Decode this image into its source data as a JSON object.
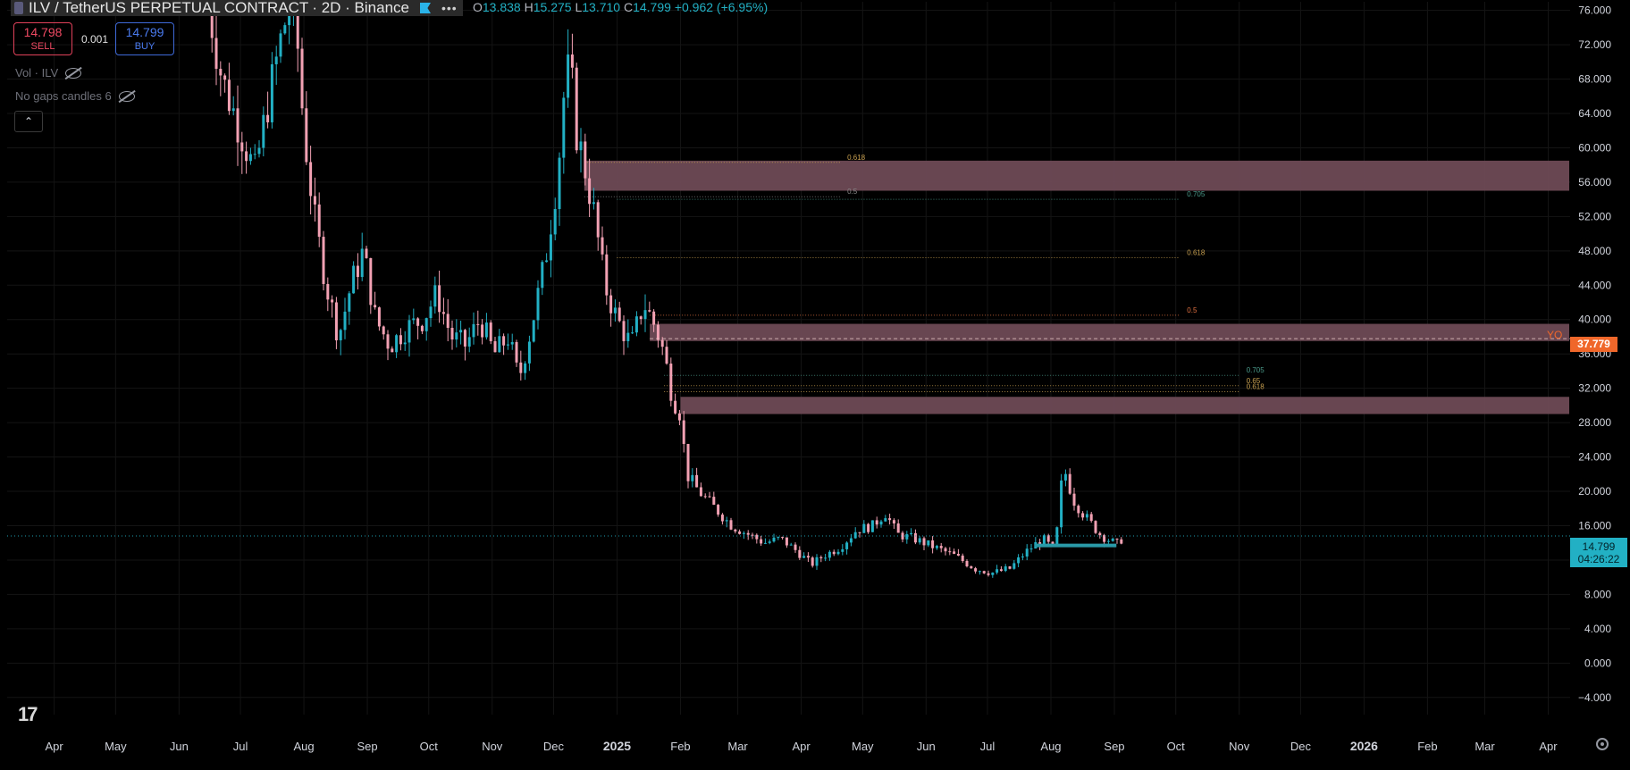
{
  "header": {
    "symbol_title": "ILV / TetherUS PERPETUAL CONTRACT",
    "interval_exchange": "· 2D · Binance",
    "more": "•••",
    "ohlc": {
      "o_label": "O",
      "o": "13.838",
      "h_label": "H",
      "h": "15.275",
      "l_label": "L",
      "l": "13.710",
      "c_label": "C",
      "c": "14.799",
      "change": "+0.962 (+6.95%)"
    }
  },
  "trade": {
    "sell_price": "14.798",
    "sell_label": "SELL",
    "qty": "0.001",
    "buy_price": "14.799",
    "buy_label": "BUY"
  },
  "indicators": [
    "Vol · ILV",
    "No gaps candles 6"
  ],
  "collapse_icon": "chevron-up-icon",
  "tags": {
    "last_price": "14.799",
    "countdown": "04:26:22",
    "yo_price": "37.779",
    "yo_label": "YO"
  },
  "colors": {
    "up": "#22b0c4",
    "down": "#f2a1b3",
    "zone": "#6e4a55",
    "last": "#22b0c4",
    "yo": "#f0672a"
  },
  "chart_data": {
    "type": "candlestick",
    "y_axis_ticks": [
      "76.000",
      "72.000",
      "68.000",
      "64.000",
      "60.000",
      "56.000",
      "52.000",
      "48.000",
      "44.000",
      "40.000",
      "36.000",
      "32.000",
      "28.000",
      "24.000",
      "20.000",
      "16.000",
      "12.000",
      "8.000",
      "4.000",
      "0.000",
      "−4.000"
    ],
    "ylim": [
      -6,
      77
    ],
    "x_axis_ticks": [
      "Apr",
      "May",
      "Jun",
      "Jul",
      "Aug",
      "Sep",
      "Oct",
      "Nov",
      "Dec",
      "2025",
      "Feb",
      "Mar",
      "Apr",
      "May",
      "Jun",
      "Jul",
      "Aug",
      "Sep",
      "Oct",
      "Nov",
      "Dec",
      "2026",
      "Feb",
      "Mar",
      "Apr"
    ],
    "price_path": [
      [
        "2024-06-15",
        77
      ],
      [
        "2024-06-22",
        68
      ],
      [
        "2024-07-01",
        62
      ],
      [
        "2024-07-08",
        57
      ],
      [
        "2024-07-15",
        66
      ],
      [
        "2024-07-22",
        74
      ],
      [
        "2024-07-27",
        78
      ],
      [
        "2024-08-01",
        62
      ],
      [
        "2024-08-06",
        52
      ],
      [
        "2024-08-12",
        44
      ],
      [
        "2024-08-18",
        38
      ],
      [
        "2024-08-24",
        44
      ],
      [
        "2024-08-30",
        48
      ],
      [
        "2024-09-05",
        40
      ],
      [
        "2024-09-12",
        37
      ],
      [
        "2024-09-20",
        39
      ],
      [
        "2024-09-28",
        40
      ],
      [
        "2024-10-05",
        43
      ],
      [
        "2024-10-12",
        38
      ],
      [
        "2024-10-19",
        37
      ],
      [
        "2024-10-26",
        40
      ],
      [
        "2024-11-02",
        36
      ],
      [
        "2024-11-09",
        38
      ],
      [
        "2024-11-14",
        33
      ],
      [
        "2024-11-20",
        39
      ],
      [
        "2024-11-27",
        47
      ],
      [
        "2024-12-03",
        57
      ],
      [
        "2024-12-06",
        66
      ],
      [
        "2024-12-09",
        70
      ],
      [
        "2024-12-12",
        62
      ],
      [
        "2024-12-16",
        58
      ],
      [
        "2024-12-21",
        52
      ],
      [
        "2024-12-26",
        44
      ],
      [
        "2025-01-01",
        40
      ],
      [
        "2025-01-08",
        37
      ],
      [
        "2025-01-14",
        42
      ],
      [
        "2025-01-20",
        39
      ],
      [
        "2025-01-24",
        36
      ],
      [
        "2025-01-28",
        31
      ],
      [
        "2025-02-01",
        29
      ],
      [
        "2025-02-04",
        22
      ],
      [
        "2025-02-10",
        20
      ],
      [
        "2025-02-18",
        18
      ],
      [
        "2025-02-26",
        16
      ],
      [
        "2025-03-06",
        15
      ],
      [
        "2025-03-14",
        14
      ],
      [
        "2025-03-22",
        14.5
      ],
      [
        "2025-03-30",
        13
      ],
      [
        "2025-04-06",
        11.5
      ],
      [
        "2025-04-12",
        12.5
      ],
      [
        "2025-04-20",
        13.5
      ],
      [
        "2025-04-28",
        15.5
      ],
      [
        "2025-05-06",
        16
      ],
      [
        "2025-05-12",
        17.5
      ],
      [
        "2025-05-18",
        15
      ],
      [
        "2025-05-26",
        14.5
      ],
      [
        "2025-06-05",
        13.5
      ],
      [
        "2025-06-15",
        12.5
      ],
      [
        "2025-06-25",
        11
      ],
      [
        "2025-07-04",
        10.5
      ],
      [
        "2025-07-12",
        11
      ],
      [
        "2025-07-20",
        13
      ],
      [
        "2025-07-28",
        14.5
      ],
      [
        "2025-08-03",
        13
      ],
      [
        "2025-08-07",
        23
      ],
      [
        "2025-08-12",
        19
      ],
      [
        "2025-08-18",
        17
      ],
      [
        "2025-08-25",
        15
      ],
      [
        "2025-09-02",
        13.8
      ],
      [
        "2025-09-06",
        14.8
      ]
    ],
    "zones": [
      {
        "from": "2024-12-16",
        "to_edge": "right",
        "low": 55,
        "high": 58.5
      },
      {
        "from": "2025-01-17",
        "to_edge": "right",
        "low": 37.5,
        "high": 39.5
      },
      {
        "from": "2025-02-01",
        "to_edge": "right",
        "low": 29,
        "high": 31
      }
    ],
    "fib_levels": [
      {
        "label": "0.618",
        "price": 58.3,
        "from": "2024-12-16",
        "to": "2025-04-20",
        "color": "#c8a050"
      },
      {
        "label": "0.5",
        "price": 54.3,
        "from": "2024-12-16",
        "to": "2025-04-20",
        "color": "#888888"
      },
      {
        "label": "0.705",
        "price": 54,
        "from": "2025-01-01",
        "to": "2025-10-03",
        "color": "#4a9a8a"
      },
      {
        "label": "0.618",
        "price": 47.2,
        "from": "2025-01-01",
        "to": "2025-10-03",
        "color": "#c8a050"
      },
      {
        "label": "0.5",
        "price": 40.5,
        "from": "2025-01-17",
        "to": "2025-10-03",
        "color": "#e07040"
      },
      {
        "label": "0.705",
        "price": 33.5,
        "from": "2025-01-24",
        "to": "2025-11-01",
        "color": "#4a9a8a"
      },
      {
        "label": "0.65",
        "price": 32.3,
        "from": "2025-01-24",
        "to": "2025-11-01",
        "color": "#c8a050"
      },
      {
        "label": "0.618",
        "price": 31.6,
        "from": "2025-01-24",
        "to": "2025-11-01",
        "color": "#c8a050"
      }
    ],
    "support_line": {
      "from": "2025-07-24",
      "to": "2025-09-02",
      "price": 13.7
    },
    "last_price": 14.799,
    "yo_price": 37.779
  }
}
